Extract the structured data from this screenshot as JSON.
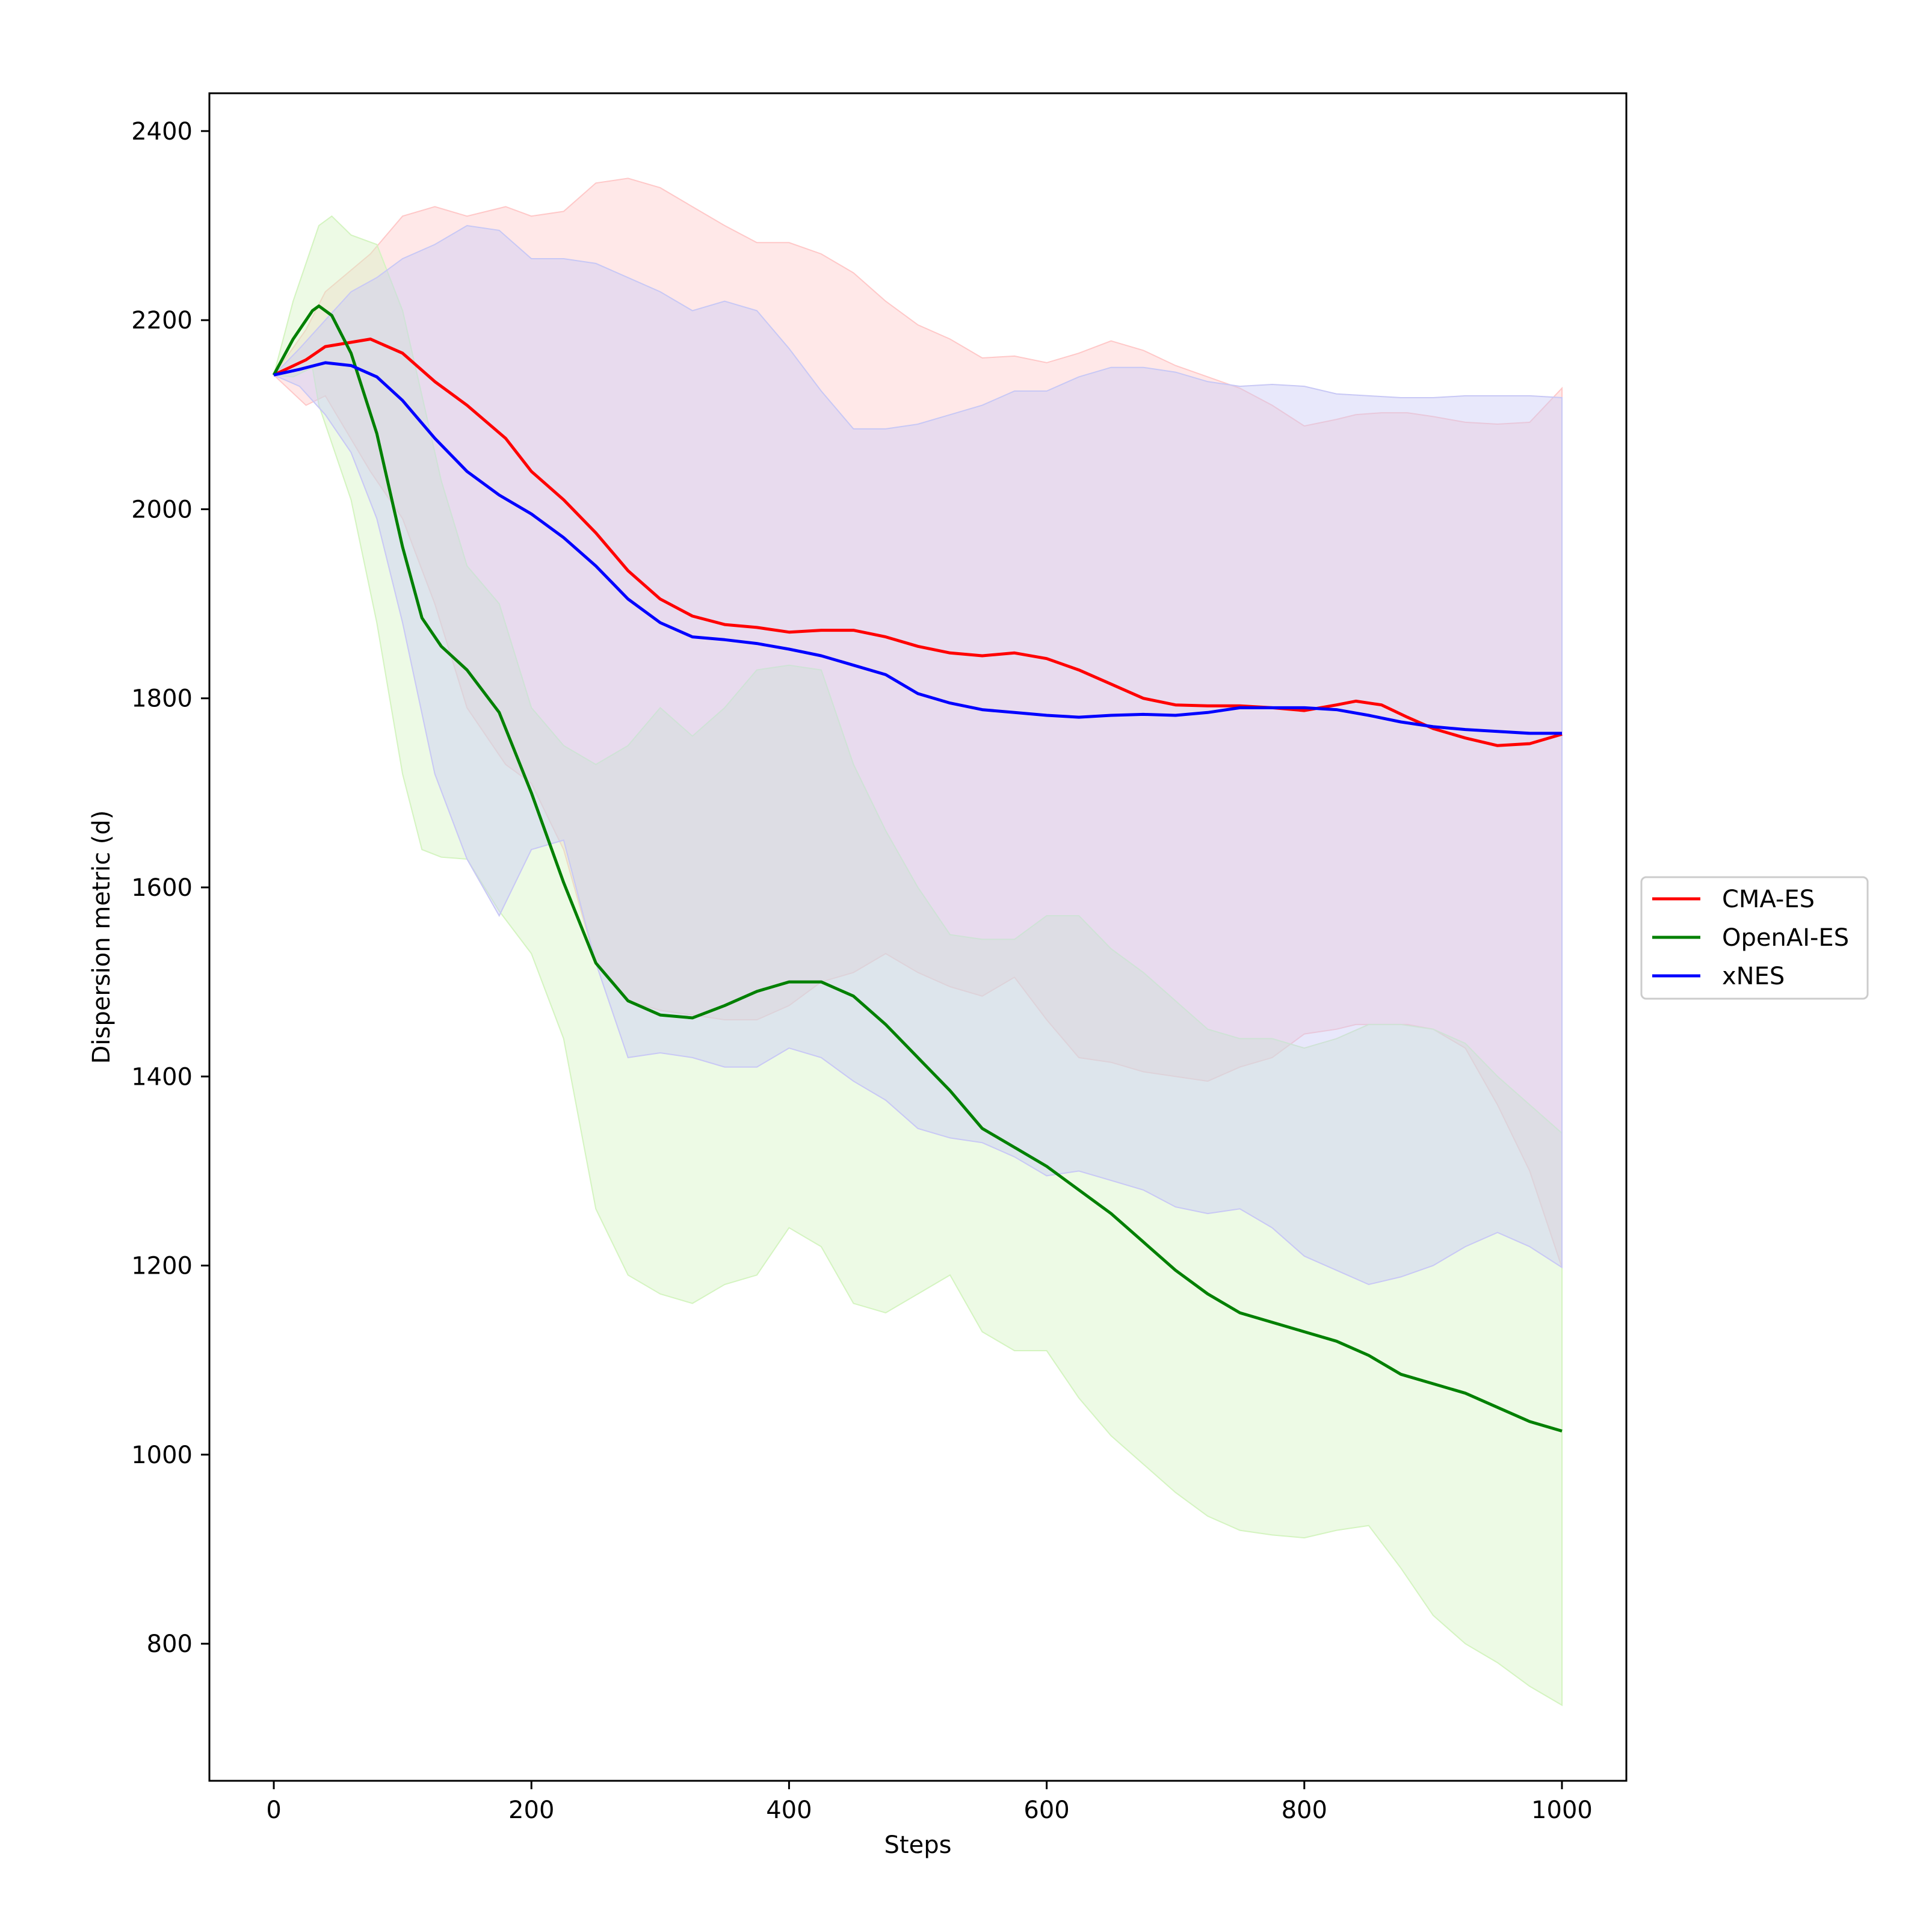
{
  "chart_data": {
    "type": "line",
    "title": "",
    "xlabel": "Steps",
    "ylabel": "Dispersion metric (d)",
    "xlim": [
      -50,
      1050
    ],
    "ylim": [
      655,
      2440
    ],
    "xticks": [
      0,
      200,
      400,
      600,
      800,
      1000
    ],
    "yticks": [
      800,
      1000,
      1200,
      1400,
      1600,
      1800,
      2000,
      2200,
      2400
    ],
    "grid": false,
    "legend_position": "center-right, outside plot",
    "series": [
      {
        "name": "CMA-ES",
        "color": "#ff0000",
        "band_color": "#ffc8c8",
        "x": [
          0,
          25,
          40,
          75,
          100,
          125,
          150,
          180,
          200,
          225,
          250,
          275,
          300,
          325,
          350,
          375,
          400,
          425,
          450,
          475,
          500,
          525,
          550,
          575,
          600,
          625,
          650,
          675,
          700,
          725,
          750,
          775,
          800,
          825,
          840,
          860,
          880,
          900,
          925,
          950,
          975,
          1000
        ],
        "y": [
          2142,
          2158,
          2172,
          2180,
          2165,
          2135,
          2110,
          2075,
          2040,
          2010,
          1975,
          1935,
          1905,
          1887,
          1878,
          1875,
          1870,
          1872,
          1872,
          1865,
          1855,
          1848,
          1845,
          1848,
          1842,
          1830,
          1815,
          1800,
          1793,
          1792,
          1792,
          1790,
          1787,
          1793,
          1797,
          1793,
          1780,
          1768,
          1758,
          1750,
          1752,
          1762
        ],
        "upper": [
          2142,
          2190,
          2230,
          2270,
          2310,
          2320,
          2310,
          2320,
          2310,
          2315,
          2345,
          2350,
          2340,
          2320,
          2300,
          2282,
          2282,
          2270,
          2250,
          2220,
          2195,
          2180,
          2160,
          2162,
          2155,
          2165,
          2178,
          2168,
          2152,
          2140,
          2128,
          2110,
          2088,
          2095,
          2100,
          2102,
          2102,
          2098,
          2092,
          2090,
          2092,
          2128
        ],
        "lower": [
          2142,
          2110,
          2120,
          2040,
          1990,
          1900,
          1790,
          1730,
          1710,
          1640,
          1520,
          1480,
          1470,
          1465,
          1460,
          1460,
          1475,
          1500,
          1510,
          1530,
          1510,
          1495,
          1485,
          1505,
          1460,
          1420,
          1415,
          1405,
          1400,
          1395,
          1410,
          1420,
          1445,
          1450,
          1455,
          1455,
          1455,
          1450,
          1430,
          1370,
          1300,
          1198
        ]
      },
      {
        "name": "OpenAI-ES",
        "color": "#008000",
        "band_color": "#d4f4c0",
        "x": [
          0,
          15,
          30,
          35,
          45,
          60,
          80,
          100,
          115,
          130,
          150,
          175,
          200,
          225,
          250,
          275,
          300,
          325,
          350,
          375,
          400,
          425,
          450,
          475,
          500,
          525,
          550,
          575,
          600,
          625,
          650,
          675,
          700,
          725,
          750,
          775,
          800,
          825,
          850,
          875,
          900,
          925,
          950,
          975,
          1000
        ],
        "y": [
          2142,
          2180,
          2210,
          2215,
          2205,
          2165,
          2080,
          1960,
          1885,
          1855,
          1830,
          1785,
          1700,
          1605,
          1520,
          1480,
          1465,
          1462,
          1475,
          1490,
          1500,
          1500,
          1485,
          1455,
          1420,
          1385,
          1345,
          1325,
          1305,
          1280,
          1255,
          1225,
          1195,
          1170,
          1150,
          1140,
          1130,
          1120,
          1105,
          1085,
          1075,
          1065,
          1050,
          1035,
          1025
        ],
        "upper": [
          2142,
          2220,
          2280,
          2300,
          2310,
          2290,
          2280,
          2210,
          2120,
          2030,
          1940,
          1900,
          1790,
          1750,
          1730,
          1750,
          1790,
          1760,
          1790,
          1830,
          1835,
          1830,
          1730,
          1660,
          1600,
          1550,
          1545,
          1545,
          1570,
          1570,
          1535,
          1510,
          1480,
          1450,
          1440,
          1440,
          1430,
          1440,
          1455,
          1455,
          1450,
          1435,
          1400,
          1370,
          1340
        ],
        "lower": [
          2142,
          2140,
          2150,
          2110,
          2070,
          2010,
          1880,
          1720,
          1640,
          1632,
          1630,
          1575,
          1530,
          1440,
          1260,
          1190,
          1170,
          1160,
          1180,
          1190,
          1240,
          1220,
          1160,
          1150,
          1170,
          1190,
          1130,
          1110,
          1110,
          1060,
          1020,
          990,
          960,
          935,
          920,
          915,
          912,
          920,
          925,
          880,
          830,
          800,
          780,
          755,
          735
        ]
      },
      {
        "name": "xNES",
        "color": "#0000ff",
        "band_color": "#c8c8f5",
        "x": [
          0,
          20,
          40,
          60,
          80,
          100,
          125,
          150,
          175,
          200,
          225,
          250,
          275,
          300,
          325,
          350,
          375,
          400,
          425,
          450,
          475,
          500,
          525,
          550,
          575,
          600,
          625,
          650,
          675,
          700,
          725,
          750,
          775,
          800,
          825,
          850,
          875,
          900,
          925,
          950,
          975,
          1000
        ],
        "y": [
          2142,
          2148,
          2155,
          2152,
          2140,
          2115,
          2075,
          2040,
          2015,
          1995,
          1970,
          1940,
          1905,
          1880,
          1865,
          1862,
          1858,
          1852,
          1845,
          1835,
          1825,
          1805,
          1795,
          1788,
          1785,
          1782,
          1780,
          1782,
          1783,
          1782,
          1785,
          1790,
          1790,
          1790,
          1788,
          1782,
          1775,
          1770,
          1767,
          1765,
          1763,
          1763
        ],
        "upper": [
          2142,
          2170,
          2200,
          2230,
          2245,
          2265,
          2280,
          2300,
          2295,
          2265,
          2265,
          2260,
          2245,
          2230,
          2210,
          2220,
          2210,
          2170,
          2125,
          2085,
          2085,
          2090,
          2100,
          2110,
          2125,
          2125,
          2140,
          2150,
          2150,
          2145,
          2135,
          2130,
          2132,
          2130,
          2122,
          2120,
          2118,
          2118,
          2120,
          2120,
          2120,
          2118
        ],
        "lower": [
          2142,
          2130,
          2100,
          2060,
          1990,
          1880,
          1720,
          1630,
          1570,
          1640,
          1650,
          1520,
          1420,
          1425,
          1420,
          1410,
          1410,
          1430,
          1420,
          1395,
          1375,
          1345,
          1335,
          1330,
          1315,
          1295,
          1300,
          1290,
          1280,
          1262,
          1255,
          1260,
          1240,
          1210,
          1195,
          1180,
          1188,
          1200,
          1220,
          1235,
          1220,
          1198
        ]
      }
    ]
  }
}
